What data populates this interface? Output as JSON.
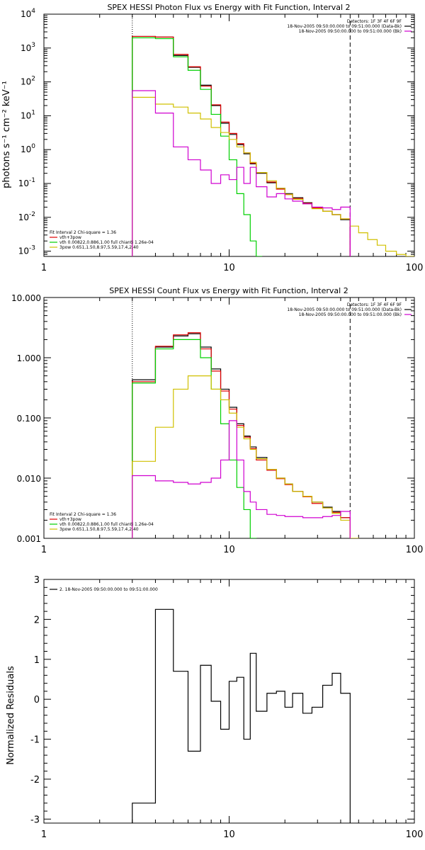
{
  "chart_data": [
    {
      "type": "line",
      "title": "SPEX HESSI Photon Flux vs Energy with Fit Function, Interval 2",
      "ylabel": "photons s⁻¹ cm⁻² keV⁻¹",
      "xscale": "log",
      "yscale": "log",
      "xlim": [
        1,
        100
      ],
      "ylim": [
        0.0007,
        10000
      ],
      "xticks": [
        "1",
        "10",
        "100"
      ],
      "yticks": [
        {
          "base": "10",
          "exp": "-3"
        },
        {
          "base": "10",
          "exp": "-2"
        },
        {
          "base": "10",
          "exp": "-1"
        },
        {
          "base": "10",
          "exp": "0"
        },
        {
          "base": "10",
          "exp": "1"
        },
        {
          "base": "10",
          "exp": "2"
        },
        {
          "base": "10",
          "exp": "3"
        },
        {
          "base": "10",
          "exp": "4"
        }
      ],
      "vlines": [
        {
          "x": 3,
          "style": "dotted"
        },
        {
          "x": 45,
          "style": "dashed"
        }
      ],
      "legend_right": [
        {
          "text": "Detectors: 1F 3F 4F 6F 9F",
          "color": ""
        },
        {
          "text": "18-Nov-2005 09:50:00.000 to 09:51:00.000 (Data-Bk)",
          "color": "#000000"
        },
        {
          "text": "18-Nov-2005 09:50:00.000 to 09:51:00.000 (Bk)",
          "color": "#d000d0"
        }
      ],
      "legend_left": [
        {
          "text": "Fit Interval 2   Chi-square = 1.36",
          "color": ""
        },
        {
          "text": "vth+3pow",
          "color": "#e00000"
        },
        {
          "text": "vth 0.00822,0.886,1.00  full chianti 1.26e-04",
          "color": "#00d000"
        },
        {
          "text": "3pow 0.651,1.50,8.97,5.59,17.4,2.40",
          "color": "#d0c000"
        }
      ],
      "series": [
        {
          "color": "#000000",
          "edges": [
            3,
            4,
            5,
            6,
            7,
            8,
            9,
            10,
            11,
            12,
            13,
            14,
            16,
            18,
            20,
            22,
            25,
            28,
            32,
            36,
            40,
            45
          ],
          "values": [
            2200,
            2100,
            600,
            270,
            80,
            20,
            6,
            2.8,
            1.4,
            0.75,
            0.38,
            0.2,
            0.105,
            0.072,
            0.05,
            0.038,
            0.027,
            0.019,
            0.015,
            0.012,
            0.0085
          ]
        },
        {
          "color": "#e00000",
          "edges": [
            3,
            4,
            5,
            6,
            7,
            8,
            9,
            10,
            11,
            12,
            13,
            14,
            16,
            18,
            20,
            22,
            25,
            28,
            32,
            36,
            40,
            45
          ],
          "values": [
            2200,
            2100,
            650,
            280,
            75,
            21,
            6.5,
            3,
            1.5,
            0.8,
            0.4,
            0.21,
            0.11,
            0.068,
            0.047,
            0.036,
            0.026,
            0.019,
            0.015,
            0.012,
            0.009
          ]
        },
        {
          "color": "#00d000",
          "edges": [
            3,
            4,
            5,
            6,
            7,
            8,
            9,
            10,
            11,
            12,
            13,
            14,
            15
          ],
          "values": [
            2000,
            1900,
            550,
            220,
            60,
            11,
            2.5,
            0.5,
            0.05,
            0.012,
            0.002,
            0.0007
          ]
        },
        {
          "color": "#d0c000",
          "edges": [
            3,
            4,
            5,
            6,
            7,
            8,
            9,
            10,
            11,
            12,
            13,
            14,
            16,
            18,
            20,
            22,
            25,
            28,
            32,
            36,
            40,
            45,
            50,
            56,
            63,
            70,
            80,
            90,
            100
          ],
          "values": [
            35,
            22,
            18,
            12,
            8,
            4.5,
            3.2,
            2,
            1.2,
            0.8,
            0.42,
            0.21,
            0.12,
            0.072,
            0.048,
            0.034,
            0.025,
            0.018,
            0.015,
            0.012,
            0.009,
            0.0055,
            0.0035,
            0.0022,
            0.0015,
            0.001,
            0.0008,
            0.0007
          ]
        },
        {
          "color": "#d000d0",
          "edges": [
            3,
            4,
            5,
            6,
            7,
            8,
            9,
            10,
            11,
            12,
            13,
            14,
            16,
            18,
            20,
            22,
            25,
            28,
            32,
            36,
            40,
            45
          ],
          "values": [
            55,
            12,
            1.2,
            0.5,
            0.25,
            0.1,
            0.18,
            0.13,
            0.3,
            0.1,
            0.3,
            0.08,
            0.04,
            0.05,
            0.035,
            0.03,
            0.025,
            0.02,
            0.019,
            0.017,
            0.02
          ]
        }
      ]
    },
    {
      "type": "line",
      "title": "SPEX HESSI Count Flux vs Energy with Fit Function, Interval 2",
      "ylabel": "",
      "xscale": "log",
      "yscale": "log",
      "xlim": [
        1,
        100
      ],
      "ylim": [
        0.001,
        10
      ],
      "xticks": [
        "1",
        "10",
        "100"
      ],
      "yticks": [
        "0.001",
        "0.010",
        "0.100",
        "1.000",
        "10.000"
      ],
      "vlines": [
        {
          "x": 3,
          "style": "dotted"
        },
        {
          "x": 45,
          "style": "dashed"
        }
      ],
      "legend_right": [
        {
          "text": "Detectors: 1F 3F 4F 6F 9F",
          "color": ""
        },
        {
          "text": "18-Nov-2005 09:50:00.000 to 09:51:00.000 (Data-Bk)",
          "color": "#000000"
        },
        {
          "text": "18-Nov-2005 09:50:00.000 to 09:51:00.000 (Bk)",
          "color": "#d000d0"
        }
      ],
      "legend_left": [
        {
          "text": "Fit Interval 2   Chi-square = 1.36",
          "color": ""
        },
        {
          "text": "vth+3pow",
          "color": "#e00000"
        },
        {
          "text": "vth 0.00822,0.886,1.00  full chianti 1.26e-04",
          "color": "#00d000"
        },
        {
          "text": "3pow 0.651,1.50,8.97,5.59,17.4,2.40",
          "color": "#d0c000"
        }
      ],
      "series": [
        {
          "color": "#000000",
          "edges": [
            3,
            4,
            5,
            6,
            7,
            8,
            9,
            10,
            11,
            12,
            13,
            14,
            16,
            18,
            20,
            22,
            25,
            28,
            32,
            36,
            40,
            45
          ],
          "values": [
            0.43,
            1.5,
            2.3,
            2.5,
            1.5,
            0.65,
            0.3,
            0.15,
            0.08,
            0.05,
            0.033,
            0.022,
            0.014,
            0.01,
            0.008,
            0.006,
            0.005,
            0.004,
            0.0033,
            0.0028,
            0.0022
          ]
        },
        {
          "color": "#e00000",
          "edges": [
            3,
            4,
            5,
            6,
            7,
            8,
            9,
            10,
            11,
            12,
            13,
            14,
            16,
            18,
            20,
            22,
            25,
            28,
            32,
            36,
            40,
            45
          ],
          "values": [
            0.4,
            1.55,
            2.4,
            2.6,
            1.4,
            0.6,
            0.28,
            0.14,
            0.075,
            0.048,
            0.031,
            0.02,
            0.0135,
            0.0098,
            0.0078,
            0.006,
            0.0049,
            0.0038,
            0.0032,
            0.0027,
            0.0022
          ]
        },
        {
          "color": "#00d000",
          "edges": [
            3,
            4,
            5,
            6,
            7,
            8,
            9,
            10,
            11,
            12,
            13,
            14
          ],
          "values": [
            0.38,
            1.4,
            2,
            2,
            1,
            0.3,
            0.08,
            0.02,
            0.007,
            0.003,
            0.001
          ]
        },
        {
          "color": "#d0c000",
          "edges": [
            3,
            4,
            5,
            6,
            7,
            8,
            9,
            10,
            11,
            12,
            13,
            14,
            16,
            18,
            20,
            22,
            25,
            28,
            32,
            36,
            40,
            45,
            50
          ],
          "values": [
            0.019,
            0.07,
            0.3,
            0.5,
            0.5,
            0.3,
            0.2,
            0.12,
            0.07,
            0.045,
            0.03,
            0.021,
            0.014,
            0.01,
            0.008,
            0.006,
            0.005,
            0.004,
            0.0032,
            0.0026,
            0.002,
            0.001
          ]
        },
        {
          "color": "#d000d0",
          "edges": [
            3,
            4,
            5,
            6,
            7,
            8,
            9,
            10,
            11,
            12,
            13,
            14,
            16,
            18,
            20,
            22,
            25,
            28,
            32,
            36,
            40,
            45
          ],
          "values": [
            0.011,
            0.009,
            0.0085,
            0.008,
            0.0085,
            0.01,
            0.02,
            0.09,
            0.02,
            0.006,
            0.004,
            0.003,
            0.0025,
            0.0024,
            0.0023,
            0.0023,
            0.0022,
            0.0022,
            0.0023,
            0.0024,
            0.0028
          ]
        }
      ]
    },
    {
      "type": "line",
      "title": "",
      "ylabel": "Normalized Residuals",
      "xscale": "log",
      "yscale": "linear",
      "xlim": [
        1,
        100
      ],
      "ylim": [
        -3.1,
        3
      ],
      "xticks": [
        "1",
        "10",
        "100"
      ],
      "yticks": [
        "-3",
        "-2",
        "-1",
        "0",
        "1",
        "2",
        "3"
      ],
      "legend_right": [],
      "legend_left": [
        {
          "text": "2. 18-Nov-2005 09:50:00.000 to 09:51:00.000",
          "color": "#000000"
        }
      ],
      "series": [
        {
          "color": "#000000",
          "edges": [
            3,
            4,
            5,
            6,
            7,
            8,
            9,
            10,
            11,
            12,
            13,
            14,
            16,
            18,
            20,
            22,
            25,
            28,
            32,
            36,
            40,
            45
          ],
          "values": [
            -2.6,
            2.25,
            0.7,
            -1.3,
            0.85,
            -0.05,
            -0.75,
            0.45,
            0.55,
            -1,
            1.15,
            -0.3,
            0.15,
            0.2,
            -0.2,
            0.15,
            -0.35,
            -0.2,
            0.35,
            0.65,
            0.15
          ]
        }
      ]
    }
  ]
}
